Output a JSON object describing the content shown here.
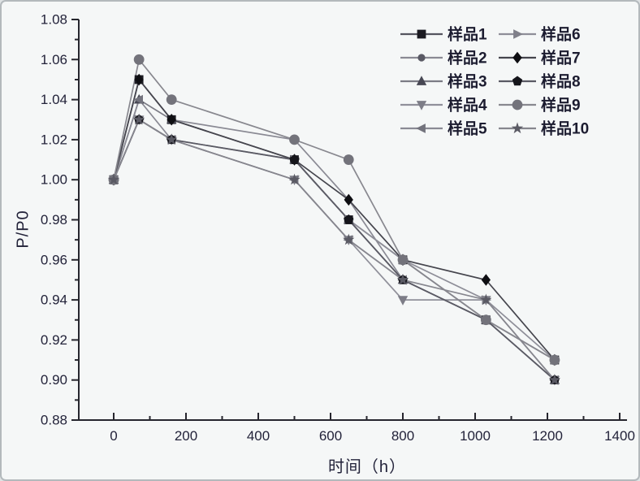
{
  "chart_data": {
    "type": "line",
    "title": "",
    "xlabel": "时间（h）",
    "ylabel": "P/P0",
    "xlim": [
      0,
      1400
    ],
    "ylim": [
      0.88,
      1.08
    ],
    "x_major_step": 200,
    "x_minor_step": 100,
    "y_major_step": 0.02,
    "y_minor_step": 0.01,
    "x_tick_labels": [
      "0",
      "200",
      "400",
      "600",
      "800",
      "1000",
      "1200",
      "1400"
    ],
    "y_tick_labels": [
      "0.88",
      "0.90",
      "0.92",
      "0.94",
      "0.96",
      "0.98",
      "1.00",
      "1.02",
      "1.04",
      "1.06",
      "1.08"
    ],
    "grid": false,
    "legend_position": "top-right",
    "legend_columns": 2,
    "background_color": "#f5f7f7",
    "axis_color": "#26262e",
    "text_color": "#23233a",
    "x": [
      0,
      70,
      160,
      500,
      650,
      800,
      1030,
      1220
    ],
    "series": [
      {
        "name": "样品1",
        "marker": "square",
        "marker_color": "#1b1b22",
        "line_color": "#55555f",
        "values": [
          1.0,
          1.05,
          1.03,
          1.01,
          0.98,
          0.96,
          0.93,
          0.91
        ]
      },
      {
        "name": "样品2",
        "marker": "circle",
        "marker_size": 4.6,
        "marker_color": "#595964",
        "line_color": "#8a8a94",
        "values": [
          1.0,
          1.05,
          1.03,
          1.02,
          0.99,
          0.95,
          0.93,
          0.91
        ]
      },
      {
        "name": "样品3",
        "marker": "triangle-up",
        "marker_color": "#474753",
        "line_color": "#7b7b85",
        "values": [
          1.0,
          1.04,
          1.03,
          1.01,
          0.98,
          0.95,
          0.93,
          0.9
        ]
      },
      {
        "name": "样品4",
        "marker": "triangle-down",
        "marker_color": "#7d7d87",
        "line_color": "#90909a",
        "values": [
          1.0,
          1.03,
          1.02,
          1.0,
          0.97,
          0.94,
          0.94,
          0.9
        ]
      },
      {
        "name": "样品5",
        "marker": "triangle-left",
        "marker_color": "#73737d",
        "line_color": "#8a8a94",
        "values": [
          1.0,
          1.04,
          1.02,
          1.0,
          0.97,
          0.95,
          0.93,
          0.9
        ]
      },
      {
        "name": "样品6",
        "marker": "triangle-right",
        "marker_color": "#80808a",
        "line_color": "#8e8e98",
        "values": [
          1.0,
          1.03,
          1.02,
          1.01,
          0.98,
          0.96,
          0.94,
          0.91
        ]
      },
      {
        "name": "样品7",
        "marker": "diamond",
        "marker_color": "#0e0e12",
        "line_color": "#45454d",
        "values": [
          1.0,
          1.05,
          1.03,
          1.01,
          0.99,
          0.96,
          0.95,
          0.91
        ]
      },
      {
        "name": "样品8",
        "marker": "pentagon",
        "marker_color": "#15151b",
        "line_color": "#5a5a64",
        "values": [
          1.0,
          1.03,
          1.02,
          1.01,
          0.98,
          0.95,
          0.93,
          0.9
        ]
      },
      {
        "name": "样品9",
        "marker": "circle",
        "marker_size": 6.4,
        "marker_color": "#73737b",
        "line_color": "#88888f",
        "values": [
          1.0,
          1.06,
          1.04,
          1.02,
          1.01,
          0.96,
          0.93,
          0.91
        ]
      },
      {
        "name": "样品10",
        "marker": "star",
        "marker_color": "#5a5a64",
        "line_color": "#86868e",
        "values": [
          1.0,
          1.03,
          1.02,
          1.0,
          0.97,
          0.95,
          0.94,
          0.9
        ]
      }
    ]
  }
}
